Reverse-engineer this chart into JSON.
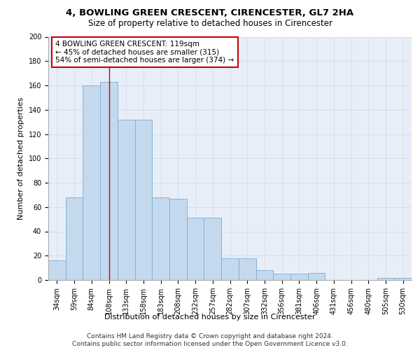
{
  "title": "4, BOWLING GREEN CRESCENT, CIRENCESTER, GL7 2HA",
  "subtitle": "Size of property relative to detached houses in Cirencester",
  "xlabel": "Distribution of detached houses by size in Cirencester",
  "ylabel": "Number of detached properties",
  "categories": [
    "34sqm",
    "59sqm",
    "84sqm",
    "108sqm",
    "133sqm",
    "158sqm",
    "183sqm",
    "208sqm",
    "232sqm",
    "257sqm",
    "282sqm",
    "307sqm",
    "332sqm",
    "356sqm",
    "381sqm",
    "406sqm",
    "431sqm",
    "456sqm",
    "480sqm",
    "505sqm",
    "530sqm"
  ],
  "values": [
    16,
    68,
    160,
    163,
    132,
    132,
    68,
    67,
    51,
    51,
    18,
    18,
    8,
    5,
    5,
    6,
    0,
    0,
    0,
    2,
    2
  ],
  "bar_color": "#c5d9ee",
  "bar_edge_color": "#7aadd4",
  "red_line_x": 3.5,
  "annotation_text": "4 BOWLING GREEN CRESCENT: 119sqm\n← 45% of detached houses are smaller (315)\n54% of semi-detached houses are larger (374) →",
  "annotation_box_facecolor": "#ffffff",
  "annotation_box_edgecolor": "#cc0000",
  "ylim": [
    0,
    200
  ],
  "yticks": [
    0,
    20,
    40,
    60,
    80,
    100,
    120,
    140,
    160,
    180,
    200
  ],
  "grid_color": "#d0d8e8",
  "background_color": "#e8eef8",
  "footer_line1": "Contains HM Land Registry data © Crown copyright and database right 2024.",
  "footer_line2": "Contains public sector information licensed under the Open Government Licence v3.0.",
  "title_fontsize": 9.5,
  "subtitle_fontsize": 8.5,
  "axis_label_fontsize": 8,
  "tick_fontsize": 7,
  "annotation_fontsize": 7.5,
  "footer_fontsize": 6.5
}
